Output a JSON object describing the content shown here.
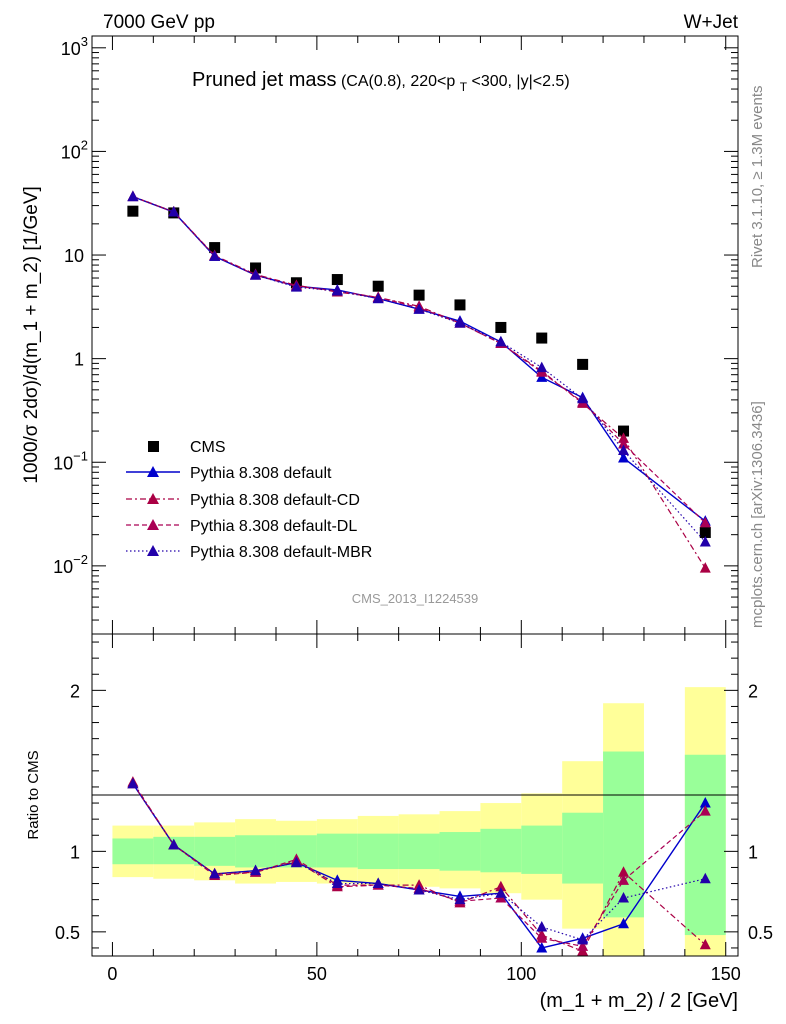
{
  "header": {
    "left": "7000 GeV pp",
    "right": "W+Jet"
  },
  "side_labels": {
    "rivet": "Rivet 3.1.10, ≥ 1.3M events",
    "mcplots": "mcplots.cern.ch [arXiv:1306.3436]"
  },
  "chart_data": [
    {
      "type": "scatter",
      "panel": "main",
      "title_main": "Pruned jet mass",
      "title_sub_pre": "(CA(0.8), 220<p",
      "title_sub_sub": "T",
      "title_sub_post": "<300, |y|<2.5)",
      "watermark": "CMS_2013_I1224539",
      "ylabel": "1000/σ 2dσ)/d(m_1 + m_2) [1/GeV]",
      "yscale": "log",
      "xlim": [
        -5,
        153
      ],
      "ylim": [
        0.0022,
        1300
      ],
      "yticks": [
        {
          "value": 1000,
          "base": "10",
          "exp": "3"
        },
        {
          "value": 100,
          "base": "10",
          "exp": "2"
        },
        {
          "value": 10,
          "base": "10",
          "exp": ""
        },
        {
          "value": 1,
          "base": "1",
          "exp": ""
        },
        {
          "value": 0.1,
          "base": "10",
          "exp": "−1"
        },
        {
          "value": 0.01,
          "base": "10",
          "exp": "−2"
        }
      ],
      "legend": [
        "CMS",
        "Pythia 8.308 default",
        "Pythia 8.308 default-CD",
        "Pythia 8.308 default-DL",
        "Pythia 8.308 default-MBR"
      ],
      "x": [
        5,
        15,
        25,
        35,
        45,
        55,
        65,
        75,
        85,
        95,
        105,
        115,
        125,
        145
      ],
      "series": [
        {
          "name": "CMS",
          "color": "#000000",
          "style": "square",
          "values": [
            26.5,
            25.5,
            11.8,
            7.5,
            5.4,
            5.8,
            5.0,
            4.1,
            3.3,
            2.0,
            1.58,
            0.88,
            0.2,
            0.021
          ]
        },
        {
          "name": "Pythia 8.308 default",
          "color": "#0000cc",
          "style": "solid",
          "values": [
            36.5,
            26.0,
            9.7,
            6.4,
            5.0,
            4.6,
            3.8,
            3.0,
            2.3,
            1.45,
            0.66,
            0.42,
            0.11,
            0.027
          ]
        },
        {
          "name": "Pythia 8.308 default-CD",
          "color": "#aa0044",
          "style": "dashdot",
          "values": [
            36.8,
            26.1,
            9.9,
            6.5,
            5.1,
            4.4,
            3.9,
            3.2,
            2.2,
            1.4,
            0.76,
            0.37,
            0.17,
            0.0095
          ]
        },
        {
          "name": "Pythia 8.308 default-DL",
          "color": "#aa0055",
          "style": "dashed",
          "values": [
            36.6,
            26.0,
            9.8,
            6.4,
            5.0,
            4.5,
            3.9,
            3.1,
            2.2,
            1.4,
            0.74,
            0.38,
            0.15,
            0.026
          ]
        },
        {
          "name": "Pythia 8.308 default-MBR",
          "color": "#2200aa",
          "style": "dotted",
          "values": [
            36.7,
            26.0,
            9.7,
            6.4,
            4.9,
            4.5,
            3.8,
            3.0,
            2.2,
            1.45,
            0.82,
            0.41,
            0.13,
            0.017
          ]
        }
      ]
    },
    {
      "type": "scatter",
      "panel": "ratio",
      "ylabel": "Ratio to CMS",
      "xlabel": "(m_1 + m_2) / 2 [GeV]",
      "xlim": [
        -5,
        153
      ],
      "ylim": [
        0.35,
        2.35
      ],
      "xticks": [
        0,
        50,
        100,
        150
      ],
      "yticks": [
        0.5,
        1,
        2
      ],
      "band_inner": [
        {
          "x": [
            0,
            10
          ],
          "lo": 0.92,
          "hi": 1.08
        },
        {
          "x": [
            10,
            20
          ],
          "lo": 0.92,
          "hi": 1.09
        },
        {
          "x": [
            20,
            30
          ],
          "lo": 0.91,
          "hi": 1.09
        },
        {
          "x": [
            30,
            40
          ],
          "lo": 0.9,
          "hi": 1.1
        },
        {
          "x": [
            40,
            50
          ],
          "lo": 0.9,
          "hi": 1.1
        },
        {
          "x": [
            50,
            60
          ],
          "lo": 0.9,
          "hi": 1.11
        },
        {
          "x": [
            60,
            70
          ],
          "lo": 0.89,
          "hi": 1.11
        },
        {
          "x": [
            70,
            80
          ],
          "lo": 0.89,
          "hi": 1.11
        },
        {
          "x": [
            80,
            90
          ],
          "lo": 0.88,
          "hi": 1.12
        },
        {
          "x": [
            90,
            100
          ],
          "lo": 0.87,
          "hi": 1.14
        },
        {
          "x": [
            100,
            110
          ],
          "lo": 0.86,
          "hi": 1.16
        },
        {
          "x": [
            110,
            120
          ],
          "lo": 0.8,
          "hi": 1.24
        },
        {
          "x": [
            120,
            130
          ],
          "lo": 0.59,
          "hi": 1.62
        },
        {
          "x": [
            140,
            150
          ],
          "lo": 0.48,
          "hi": 1.6
        }
      ],
      "band_outer": [
        {
          "x": [
            0,
            10
          ],
          "lo": 0.84,
          "hi": 1.16
        },
        {
          "x": [
            10,
            20
          ],
          "lo": 0.83,
          "hi": 1.16
        },
        {
          "x": [
            20,
            30
          ],
          "lo": 0.82,
          "hi": 1.18
        },
        {
          "x": [
            30,
            40
          ],
          "lo": 0.8,
          "hi": 1.2
        },
        {
          "x": [
            40,
            50
          ],
          "lo": 0.81,
          "hi": 1.19
        },
        {
          "x": [
            50,
            60
          ],
          "lo": 0.8,
          "hi": 1.2
        },
        {
          "x": [
            60,
            70
          ],
          "lo": 0.79,
          "hi": 1.22
        },
        {
          "x": [
            70,
            80
          ],
          "lo": 0.78,
          "hi": 1.23
        },
        {
          "x": [
            80,
            90
          ],
          "lo": 0.77,
          "hi": 1.25
        },
        {
          "x": [
            90,
            100
          ],
          "lo": 0.74,
          "hi": 1.3
        },
        {
          "x": [
            100,
            110
          ],
          "lo": 0.7,
          "hi": 1.36
        },
        {
          "x": [
            110,
            120
          ],
          "lo": 0.52,
          "hi": 1.56
        },
        {
          "x": [
            120,
            130
          ],
          "lo": 0.3,
          "hi": 1.92
        },
        {
          "x": [
            140,
            150
          ],
          "lo": 0.3,
          "hi": 2.02
        }
      ],
      "x": [
        5,
        15,
        25,
        35,
        45,
        55,
        65,
        75,
        85,
        95,
        105,
        115,
        125,
        145
      ],
      "series": [
        {
          "name": "Pythia 8.308 default",
          "color": "#0000cc",
          "style": "solid",
          "values": [
            1.42,
            1.04,
            0.86,
            0.88,
            0.93,
            0.82,
            0.8,
            0.76,
            0.72,
            0.74,
            0.4,
            0.46,
            0.55,
            1.3
          ]
        },
        {
          "name": "Pythia 8.308 default-CD",
          "color": "#aa0044",
          "style": "dashdot",
          "values": [
            1.43,
            1.04,
            0.86,
            0.87,
            0.94,
            0.78,
            0.79,
            0.79,
            0.68,
            0.78,
            0.48,
            0.38,
            0.87,
            0.42
          ]
        },
        {
          "name": "Pythia 8.308 default-DL",
          "color": "#aa0055",
          "style": "dashed",
          "values": [
            1.42,
            1.04,
            0.85,
            0.87,
            0.95,
            0.79,
            0.79,
            0.77,
            0.69,
            0.71,
            0.46,
            0.41,
            0.82,
            1.25
          ]
        },
        {
          "name": "Pythia 8.308 default-MBR",
          "color": "#2200aa",
          "style": "dotted",
          "values": [
            1.42,
            1.04,
            0.86,
            0.88,
            0.93,
            0.8,
            0.8,
            0.76,
            0.7,
            0.74,
            0.53,
            0.45,
            0.71,
            0.83
          ]
        }
      ]
    }
  ]
}
